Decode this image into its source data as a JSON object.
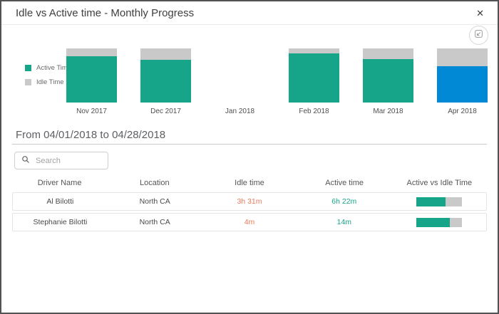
{
  "modal": {
    "title": "Idle vs Active time - Monthly Progress",
    "close_glyph": "✕"
  },
  "colors": {
    "active_teal": "#17a58a",
    "idle_gray": "#c9c9c9",
    "selected_blue": "#0289d6",
    "idle_text_orange": "#e8795c",
    "active_text_teal": "#17a58a"
  },
  "chart_data": {
    "type": "bar",
    "subtype": "stacked-percent-column",
    "title": "Idle vs Active time - Monthly Progress",
    "categories": [
      "Nov 2017",
      "Dec 2017",
      "Jan 2018",
      "Feb 2018",
      "Mar 2018",
      "Apr 2018"
    ],
    "series": [
      {
        "name": "Active Time",
        "color": "#17a58a",
        "values": [
          86,
          79,
          0,
          91,
          80,
          67
        ]
      },
      {
        "name": "Idle Time",
        "color": "#c9c9c9",
        "values": [
          14,
          21,
          0,
          9,
          20,
          33
        ]
      }
    ],
    "selected_category": "Apr 2018",
    "selected_color": "#0289d6",
    "legend_position": "left",
    "ylim": [
      0,
      100
    ],
    "grid": false
  },
  "period": {
    "label": "From 04/01/2018 to 04/28/2018"
  },
  "search": {
    "placeholder": "Search"
  },
  "table": {
    "headers": [
      "Driver Name",
      "Location",
      "Idle time",
      "Active time",
      "Active vs Idle Time"
    ],
    "rows": [
      {
        "driver": "Al Bilotti",
        "location": "North CA",
        "idle_time": "3h 31m",
        "active_time": "6h 22m",
        "active_pct": 64
      },
      {
        "driver": "Stephanie Bilotti",
        "location": "North CA",
        "idle_time": "4m",
        "active_time": "14m",
        "active_pct": 74
      }
    ]
  }
}
